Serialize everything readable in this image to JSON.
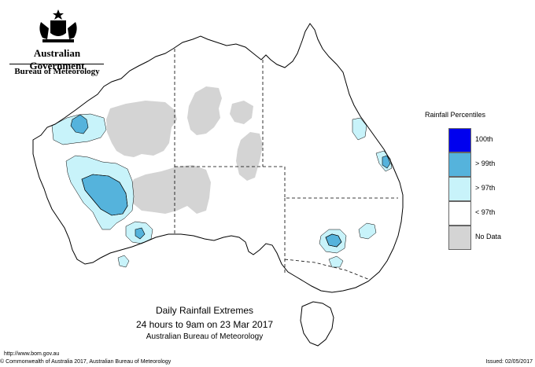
{
  "header": {
    "government": "Australian Government",
    "bureau": "Bureau of Meteorology"
  },
  "legend": {
    "title": "Rainfall Percentiles",
    "items": [
      {
        "label": "100th",
        "color": "#0000ee"
      },
      {
        "label": "> 99th",
        "color": "#55b3dc"
      },
      {
        "label": "> 97th",
        "color": "#c8f3fa"
      },
      {
        "label": "< 97th",
        "color": "#ffffff"
      },
      {
        "label": "No Data",
        "color": "#d4d4d4"
      }
    ]
  },
  "caption": {
    "line1": "Daily Rainfall Extremes",
    "line2": "24 hours to 9am on 23 Mar 2017",
    "line3": "Australian Bureau of Meteorology"
  },
  "footer": {
    "url": "http://www.bom.gov.au",
    "copyright": "© Commonwealth of Australia 2017, Australian Bureau of Meteorology",
    "issued": "Issued: 02/05/2017"
  },
  "colors": {
    "nodata": "#d4d4d4",
    "pct97": "#c8f3fa",
    "pct99": "#55b3dc",
    "pct100": "#0000ee",
    "outline": "#000000"
  }
}
